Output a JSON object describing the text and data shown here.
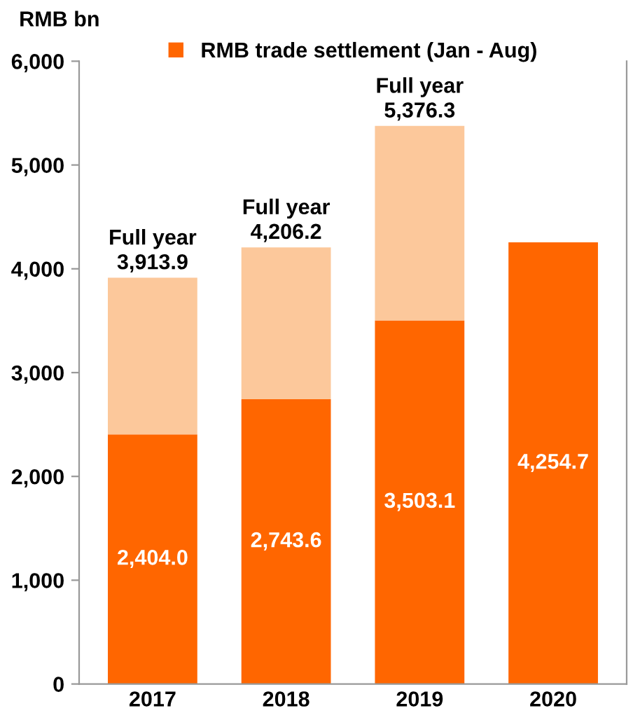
{
  "chart_data": {
    "type": "bar",
    "stacked": true,
    "ylabel": "RMB bn",
    "categories": [
      "2017",
      "2018",
      "2019",
      "2020"
    ],
    "series": [
      {
        "name": "RMB trade settlement (Jan - Aug)",
        "color": "#ff6600",
        "values": [
          2404.0,
          2743.6,
          3503.1,
          4254.7
        ],
        "value_labels": [
          "2,404.0",
          "2,743.6",
          "3,503.1",
          "4,254.7"
        ]
      },
      {
        "color": "#fcc89b",
        "values": [
          1510,
          1463,
          1873,
          null
        ]
      }
    ],
    "totals": [
      "Full year\n3,913.9",
      "Full year\n4,206.2",
      "Full year\n5,376.3",
      null
    ],
    "ylim": [
      0,
      6000
    ],
    "yticks": [
      {
        "value": 0,
        "label": "0"
      },
      {
        "value": 1000,
        "label": "1,000"
      },
      {
        "value": 2000,
        "label": "2,000"
      },
      {
        "value": 3000,
        "label": "3,000"
      },
      {
        "value": 4000,
        "label": "4,000"
      },
      {
        "value": 5000,
        "label": "5,000"
      },
      {
        "value": 6000,
        "label": "6,000"
      }
    ],
    "grid": false,
    "legend": "top"
  }
}
